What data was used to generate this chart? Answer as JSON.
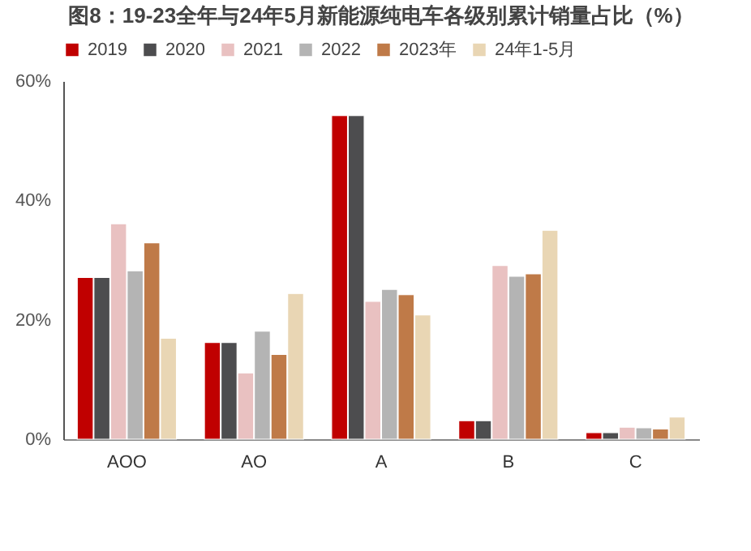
{
  "chart_data": {
    "type": "bar",
    "title": "图8：19-23全年与24年5月新能源纯电车各级别累计销量占比（%）",
    "categories": [
      "AOO",
      "AO",
      "A",
      "B",
      "C"
    ],
    "series": [
      {
        "name": "2019",
        "color": "#c00000",
        "values": [
          27.1,
          16.2,
          54.2,
          3.1,
          1.1
        ]
      },
      {
        "name": "2020",
        "color": "#4d4d4f",
        "values": [
          27.1,
          16.2,
          54.2,
          3.1,
          1.1
        ]
      },
      {
        "name": "2021",
        "color": "#e9c1c1",
        "values": [
          36.1,
          11.1,
          23.1,
          29.1,
          2.0
        ]
      },
      {
        "name": "2022",
        "color": "#b4b4b4",
        "values": [
          28.2,
          18.1,
          25.1,
          27.3,
          1.9
        ]
      },
      {
        "name": "2023年",
        "color": "#bf7a48",
        "values": [
          32.9,
          14.2,
          24.2,
          27.7,
          1.7
        ]
      },
      {
        "name": "24年1-5月",
        "color": "#e9d6b4",
        "values": [
          16.9,
          24.4,
          20.8,
          35.0,
          3.7
        ]
      }
    ],
    "ylim": [
      0,
      60
    ],
    "yticks": [
      {
        "value": 0,
        "label": "0%"
      },
      {
        "value": 20,
        "label": "20%"
      },
      {
        "value": 40,
        "label": "40%"
      },
      {
        "value": 60,
        "label": "60%"
      }
    ],
    "grid": false,
    "legend": "top"
  }
}
